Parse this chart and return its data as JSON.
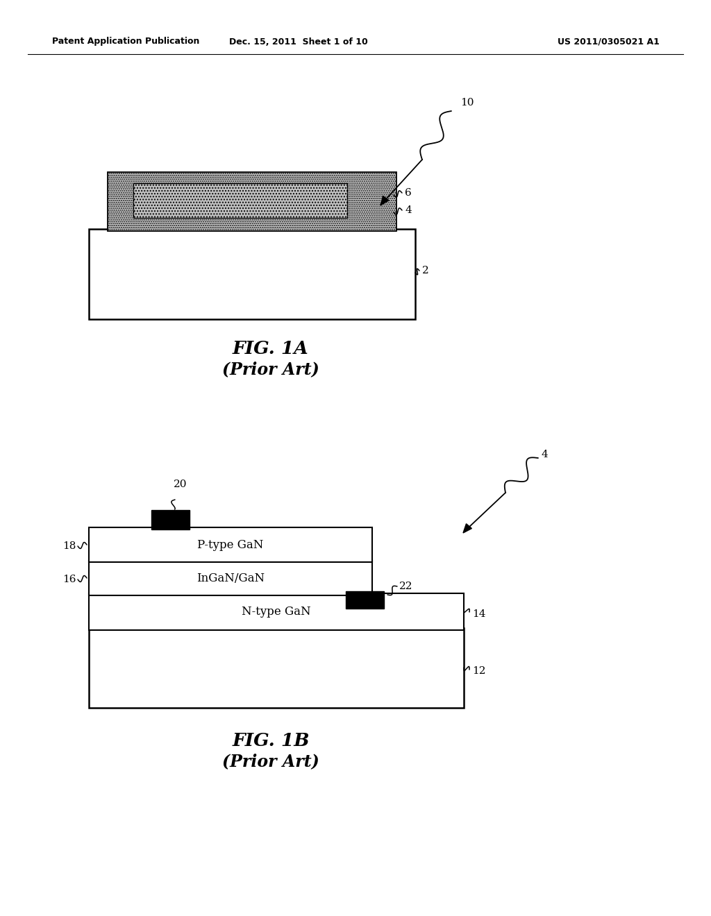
{
  "header_left": "Patent Application Publication",
  "header_mid": "Dec. 15, 2011  Sheet 1 of 10",
  "header_right": "US 2011/0305021 A1",
  "fig1a_label": "FIG. 1A",
  "fig1a_sub": "(Prior Art)",
  "fig1b_label": "FIG. 1B",
  "fig1b_sub": "(Prior Art)",
  "bg_color": "#ffffff"
}
